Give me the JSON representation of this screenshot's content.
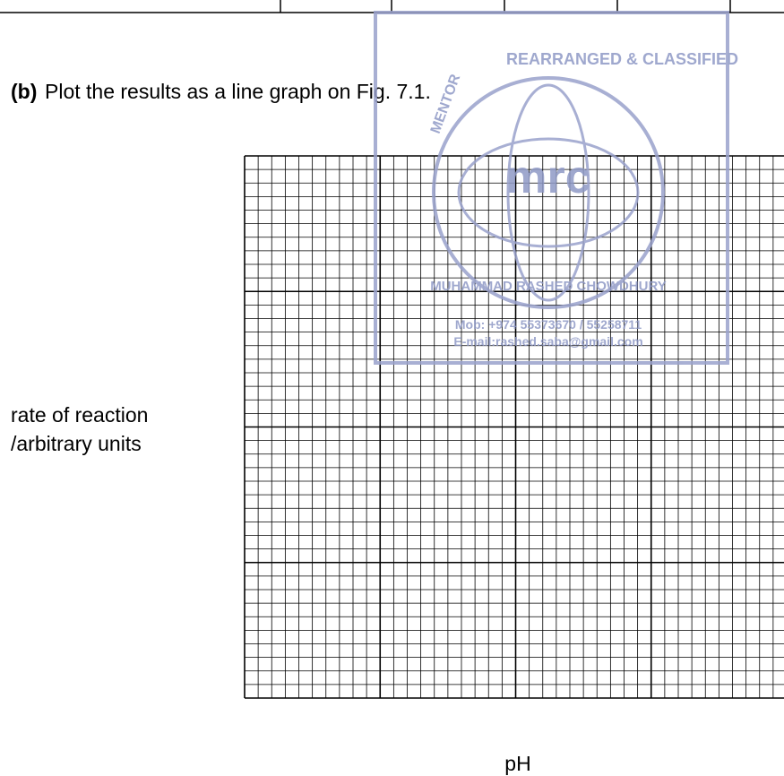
{
  "question": {
    "label": "(b)",
    "text": "Plot the results as a line graph on Fig. 7.1."
  },
  "graph": {
    "y_label_line1": "rate of reaction",
    "y_label_line2": "/arbitrary units",
    "x_label": "pH"
  },
  "watermark": {
    "arc_top": "REARRANGED & CLASSIFIED",
    "arc_left": "MENTOR",
    "arc_bottom": "MUHAMMAD RASHED CHOWDHURY",
    "logo": "mrc",
    "phone": "Mob: +974 55373670 / 55258711",
    "email": "E-mail:rashed.saba@gmail.com"
  }
}
